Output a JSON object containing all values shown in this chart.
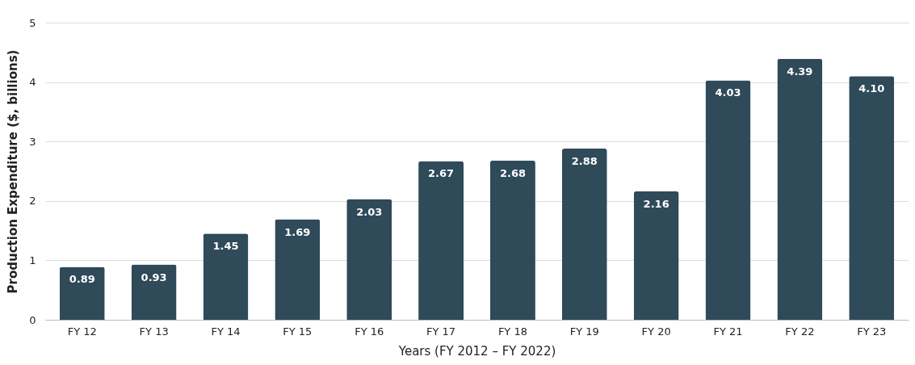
{
  "chart_data": {
    "type": "bar",
    "xlabel": "Years (FY 2012 – FY 2022)",
    "ylabel": "Production Expenditure ($, billions)",
    "categories": [
      "FY 12",
      "FY 13",
      "FY 14",
      "FY 15",
      "FY 16",
      "FY 17",
      "FY 18",
      "FY 19",
      "FY 20",
      "FY 21",
      "FY 22",
      "FY 23"
    ],
    "values": [
      0.89,
      0.93,
      1.45,
      1.69,
      2.03,
      2.67,
      2.68,
      2.88,
      2.16,
      4.03,
      4.39,
      4.1
    ],
    "color": "#2f4a59",
    "ylim": [
      0,
      5
    ],
    "yticks": [
      0,
      1,
      2,
      3,
      4,
      5
    ],
    "grid": "y",
    "value_labels": [
      "0.89",
      "0.93",
      "1.45",
      "1.69",
      "2.03",
      "2.67",
      "2.68",
      "2.88",
      "2.16",
      "4.03",
      "4.39",
      "4.10"
    ]
  }
}
